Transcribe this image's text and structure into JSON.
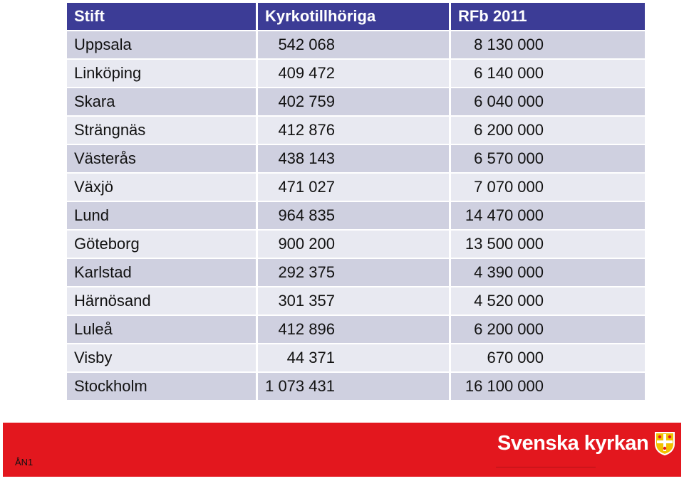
{
  "table": {
    "headers": [
      "Stift",
      "Kyrkotillhöriga",
      "RFb 2011"
    ],
    "rows": [
      [
        "Uppsala",
        "542 068",
        "8 130 000"
      ],
      [
        "Linköping",
        "409 472",
        "6 140 000"
      ],
      [
        "Skara",
        "402 759",
        "6 040 000"
      ],
      [
        "Strängnäs",
        "412 876",
        "6 200 000"
      ],
      [
        "Västerås",
        "438 143",
        "6 570 000"
      ],
      [
        "Växjö",
        "471 027",
        "7 070 000"
      ],
      [
        "Lund",
        "964 835",
        "14 470 000"
      ],
      [
        "Göteborg",
        "900 200",
        "13 500 000"
      ],
      [
        "Karlstad",
        "292 375",
        "4 390 000"
      ],
      [
        "Härnösand",
        "301 357",
        "4 520 000"
      ],
      [
        "Luleå",
        "412 896",
        "6 200 000"
      ],
      [
        "Visby",
        "44 371",
        "670 000"
      ],
      [
        "Stockholm",
        "1 073 431",
        "16 100 000"
      ]
    ]
  },
  "footer": {
    "code": "ÅN1",
    "brand_name": "Svenska kyrkan",
    "brand_icon": "crest-icon",
    "bar_color": "#e3171e"
  },
  "colors": {
    "header_bg": "#3c3c96",
    "row_odd": "#cfd0e0",
    "row_even": "#e8e9f1"
  }
}
